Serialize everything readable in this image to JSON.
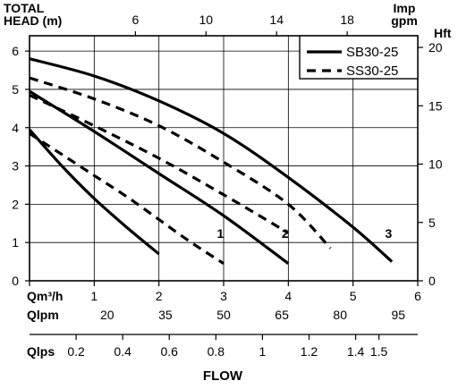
{
  "chart_data": {
    "type": "line",
    "title_lines": [
      "TOTAL",
      "HEAD (m)"
    ],
    "xlabel": "FLOW",
    "x": {
      "label": "Qm³/h",
      "range": [
        0,
        6
      ],
      "ticks": [
        0,
        1,
        2,
        3,
        4,
        5,
        6
      ]
    },
    "y_left": {
      "label": "HEAD (m)",
      "range": [
        0,
        6.4
      ],
      "ticks": [
        0,
        1,
        2,
        3,
        4,
        5,
        6
      ]
    },
    "y_right": {
      "label": "Hft",
      "ticks": [
        0,
        5,
        10,
        15,
        20
      ]
    },
    "top_axis": {
      "label_lines": [
        "Imp",
        "gpm"
      ],
      "ticks": [
        6,
        10,
        14,
        18
      ]
    },
    "qlpm": {
      "label": "Qlpm",
      "ticks": [
        20,
        35,
        50,
        65,
        80,
        95
      ]
    },
    "qlps": {
      "label": "Qlps",
      "ticks": [
        0.2,
        0.4,
        0.6,
        0.8,
        1,
        1.2,
        1.4,
        1.5
      ],
      "tick_labels": [
        "0.2",
        "0.4",
        "0.6",
        "0.8",
        "1",
        "1.2",
        "1.4",
        "1.5"
      ]
    },
    "legend": {
      "position": "top-right",
      "entries": [
        {
          "name": "SB30-25",
          "style": "solid"
        },
        {
          "name": "SS30-25",
          "style": "dashed"
        }
      ]
    },
    "speed_labels": [
      {
        "text": "1",
        "x": 2.95,
        "y": 1.12
      },
      {
        "text": "2",
        "x": 3.95,
        "y": 1.12
      },
      {
        "text": "3",
        "x": 5.55,
        "y": 1.12
      }
    ],
    "series": [
      {
        "name": "SB30-25",
        "speed": "1",
        "style": "solid",
        "x": [
          0,
          0.5,
          1.0,
          1.5,
          2.0
        ],
        "y": [
          3.95,
          3.0,
          2.15,
          1.4,
          0.7
        ]
      },
      {
        "name": "SB30-25",
        "speed": "2",
        "style": "solid",
        "x": [
          0,
          1.0,
          2.0,
          3.0,
          4.0
        ],
        "y": [
          4.95,
          3.9,
          2.8,
          1.7,
          0.45
        ]
      },
      {
        "name": "SB30-25",
        "speed": "3",
        "style": "solid",
        "x": [
          0,
          1.0,
          2.0,
          3.0,
          4.0,
          5.0,
          5.6
        ],
        "y": [
          5.8,
          5.35,
          4.7,
          3.85,
          2.7,
          1.4,
          0.5
        ]
      },
      {
        "name": "SS30-25",
        "speed": "1",
        "style": "dashed",
        "x": [
          0,
          0.5,
          1.0,
          1.5,
          2.0,
          2.5,
          3.0
        ],
        "y": [
          3.85,
          3.3,
          2.75,
          2.2,
          1.6,
          1.0,
          0.45
        ]
      },
      {
        "name": "SS30-25",
        "speed": "2",
        "style": "dashed",
        "x": [
          0,
          1.0,
          2.0,
          3.0,
          4.0
        ],
        "y": [
          4.85,
          4.05,
          3.2,
          2.25,
          1.25
        ]
      },
      {
        "name": "SS30-25",
        "speed": "3",
        "style": "dashed",
        "x": [
          0,
          1.0,
          2.0,
          3.0,
          4.0,
          4.65
        ],
        "y": [
          5.3,
          4.75,
          4.05,
          3.1,
          2.0,
          0.85
        ]
      }
    ]
  }
}
